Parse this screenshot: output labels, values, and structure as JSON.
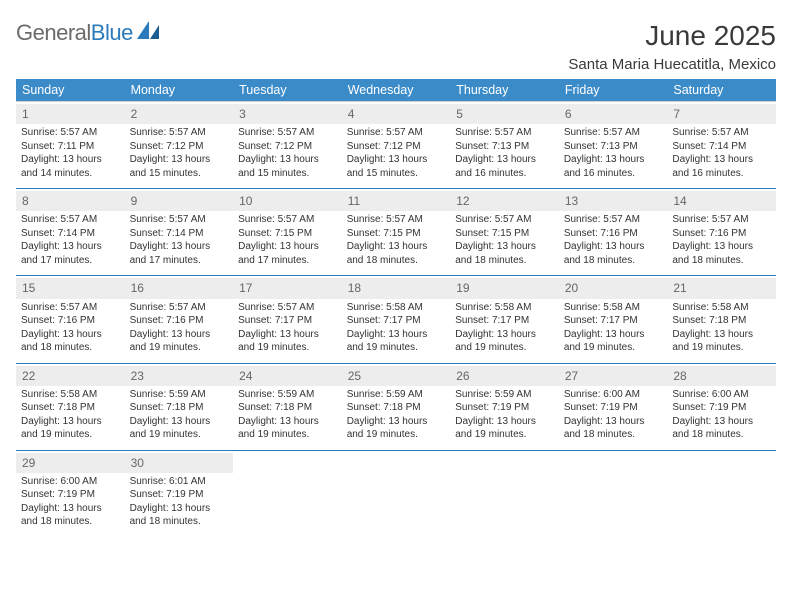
{
  "logo": {
    "part1": "General",
    "part2": "Blue"
  },
  "title": "June 2025",
  "location": "Santa Maria Huecatitla, Mexico",
  "colors": {
    "header_bg": "#3b8bc9",
    "header_text": "#ffffff",
    "rule": "#2b7bbc",
    "daynum_bg": "#ededed",
    "text": "#333333",
    "logo_blue": "#2b7bbc"
  },
  "daysOfWeek": [
    "Sunday",
    "Monday",
    "Tuesday",
    "Wednesday",
    "Thursday",
    "Friday",
    "Saturday"
  ],
  "weeks": [
    [
      {
        "n": "1",
        "sunrise": "5:57 AM",
        "sunset": "7:11 PM",
        "dl1": "Daylight: 13 hours",
        "dl2": "and 14 minutes."
      },
      {
        "n": "2",
        "sunrise": "5:57 AM",
        "sunset": "7:12 PM",
        "dl1": "Daylight: 13 hours",
        "dl2": "and 15 minutes."
      },
      {
        "n": "3",
        "sunrise": "5:57 AM",
        "sunset": "7:12 PM",
        "dl1": "Daylight: 13 hours",
        "dl2": "and 15 minutes."
      },
      {
        "n": "4",
        "sunrise": "5:57 AM",
        "sunset": "7:12 PM",
        "dl1": "Daylight: 13 hours",
        "dl2": "and 15 minutes."
      },
      {
        "n": "5",
        "sunrise": "5:57 AM",
        "sunset": "7:13 PM",
        "dl1": "Daylight: 13 hours",
        "dl2": "and 16 minutes."
      },
      {
        "n": "6",
        "sunrise": "5:57 AM",
        "sunset": "7:13 PM",
        "dl1": "Daylight: 13 hours",
        "dl2": "and 16 minutes."
      },
      {
        "n": "7",
        "sunrise": "5:57 AM",
        "sunset": "7:14 PM",
        "dl1": "Daylight: 13 hours",
        "dl2": "and 16 minutes."
      }
    ],
    [
      {
        "n": "8",
        "sunrise": "5:57 AM",
        "sunset": "7:14 PM",
        "dl1": "Daylight: 13 hours",
        "dl2": "and 17 minutes."
      },
      {
        "n": "9",
        "sunrise": "5:57 AM",
        "sunset": "7:14 PM",
        "dl1": "Daylight: 13 hours",
        "dl2": "and 17 minutes."
      },
      {
        "n": "10",
        "sunrise": "5:57 AM",
        "sunset": "7:15 PM",
        "dl1": "Daylight: 13 hours",
        "dl2": "and 17 minutes."
      },
      {
        "n": "11",
        "sunrise": "5:57 AM",
        "sunset": "7:15 PM",
        "dl1": "Daylight: 13 hours",
        "dl2": "and 18 minutes."
      },
      {
        "n": "12",
        "sunrise": "5:57 AM",
        "sunset": "7:15 PM",
        "dl1": "Daylight: 13 hours",
        "dl2": "and 18 minutes."
      },
      {
        "n": "13",
        "sunrise": "5:57 AM",
        "sunset": "7:16 PM",
        "dl1": "Daylight: 13 hours",
        "dl2": "and 18 minutes."
      },
      {
        "n": "14",
        "sunrise": "5:57 AM",
        "sunset": "7:16 PM",
        "dl1": "Daylight: 13 hours",
        "dl2": "and 18 minutes."
      }
    ],
    [
      {
        "n": "15",
        "sunrise": "5:57 AM",
        "sunset": "7:16 PM",
        "dl1": "Daylight: 13 hours",
        "dl2": "and 18 minutes."
      },
      {
        "n": "16",
        "sunrise": "5:57 AM",
        "sunset": "7:16 PM",
        "dl1": "Daylight: 13 hours",
        "dl2": "and 19 minutes."
      },
      {
        "n": "17",
        "sunrise": "5:57 AM",
        "sunset": "7:17 PM",
        "dl1": "Daylight: 13 hours",
        "dl2": "and 19 minutes."
      },
      {
        "n": "18",
        "sunrise": "5:58 AM",
        "sunset": "7:17 PM",
        "dl1": "Daylight: 13 hours",
        "dl2": "and 19 minutes."
      },
      {
        "n": "19",
        "sunrise": "5:58 AM",
        "sunset": "7:17 PM",
        "dl1": "Daylight: 13 hours",
        "dl2": "and 19 minutes."
      },
      {
        "n": "20",
        "sunrise": "5:58 AM",
        "sunset": "7:17 PM",
        "dl1": "Daylight: 13 hours",
        "dl2": "and 19 minutes."
      },
      {
        "n": "21",
        "sunrise": "5:58 AM",
        "sunset": "7:18 PM",
        "dl1": "Daylight: 13 hours",
        "dl2": "and 19 minutes."
      }
    ],
    [
      {
        "n": "22",
        "sunrise": "5:58 AM",
        "sunset": "7:18 PM",
        "dl1": "Daylight: 13 hours",
        "dl2": "and 19 minutes."
      },
      {
        "n": "23",
        "sunrise": "5:59 AM",
        "sunset": "7:18 PM",
        "dl1": "Daylight: 13 hours",
        "dl2": "and 19 minutes."
      },
      {
        "n": "24",
        "sunrise": "5:59 AM",
        "sunset": "7:18 PM",
        "dl1": "Daylight: 13 hours",
        "dl2": "and 19 minutes."
      },
      {
        "n": "25",
        "sunrise": "5:59 AM",
        "sunset": "7:18 PM",
        "dl1": "Daylight: 13 hours",
        "dl2": "and 19 minutes."
      },
      {
        "n": "26",
        "sunrise": "5:59 AM",
        "sunset": "7:19 PM",
        "dl1": "Daylight: 13 hours",
        "dl2": "and 19 minutes."
      },
      {
        "n": "27",
        "sunrise": "6:00 AM",
        "sunset": "7:19 PM",
        "dl1": "Daylight: 13 hours",
        "dl2": "and 18 minutes."
      },
      {
        "n": "28",
        "sunrise": "6:00 AM",
        "sunset": "7:19 PM",
        "dl1": "Daylight: 13 hours",
        "dl2": "and 18 minutes."
      }
    ],
    [
      {
        "n": "29",
        "sunrise": "6:00 AM",
        "sunset": "7:19 PM",
        "dl1": "Daylight: 13 hours",
        "dl2": "and 18 minutes."
      },
      {
        "n": "30",
        "sunrise": "6:01 AM",
        "sunset": "7:19 PM",
        "dl1": "Daylight: 13 hours",
        "dl2": "and 18 minutes."
      },
      null,
      null,
      null,
      null,
      null
    ]
  ],
  "labels": {
    "sunrise": "Sunrise:",
    "sunset": "Sunset:"
  },
  "layout": {
    "cell_font_size": 10,
    "header_font_size": 12.5,
    "title_font_size": 28,
    "location_font_size": 15
  }
}
